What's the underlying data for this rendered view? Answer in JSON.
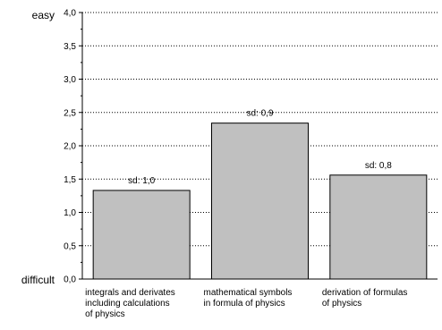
{
  "chart_data": {
    "type": "bar",
    "categories": [
      [
        "integrals and derivates",
        "including calculations",
        "of physics"
      ],
      [
        "mathematical symbols",
        "in formula of physics"
      ],
      [
        "derivation of formulas",
        "of physics"
      ]
    ],
    "values": [
      1.33,
      2.34,
      1.56
    ],
    "annotations": [
      "sd: 1,0",
      "sd: 0,9",
      "sd: 0,8"
    ],
    "y_ticks": [
      "0,0",
      "0,5",
      "1,0",
      "1,5",
      "2,0",
      "2,5",
      "3,0",
      "3,5",
      "4,0"
    ],
    "ylim": [
      0,
      4
    ],
    "y_top_label": "easy",
    "y_bottom_label": "difficult",
    "grid": "horizontal-dotted",
    "bar_color": "#c0c0c0"
  }
}
